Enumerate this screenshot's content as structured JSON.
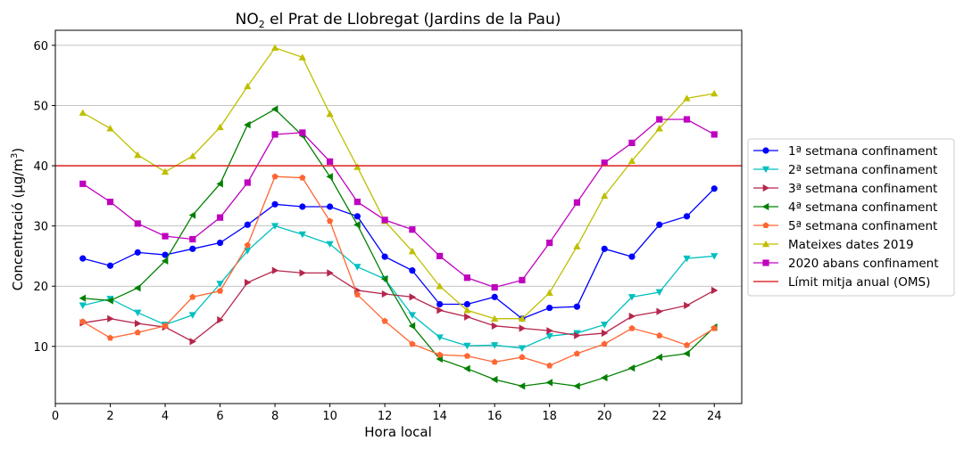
{
  "chart_data": {
    "type": "line",
    "title_main": "NO",
    "title_sub": "2",
    "title_rest": " el Prat de Llobregat (Jardins de la Pau)",
    "xlabel": "Hora local",
    "ylabel_main": "Concentració (µg/m",
    "ylabel_sup": "3",
    "ylabel_end": ")",
    "xlim": [
      0,
      25
    ],
    "ylim": [
      0.5,
      62.5
    ],
    "xticks": [
      0,
      2,
      4,
      6,
      8,
      10,
      12,
      14,
      16,
      18,
      20,
      22,
      24
    ],
    "yticks": [
      10,
      20,
      30,
      40,
      50,
      60
    ],
    "grid": "horizontal",
    "legend_position": "right",
    "x": [
      1,
      2,
      3,
      4,
      5,
      6,
      7,
      8,
      9,
      10,
      11,
      12,
      13,
      14,
      15,
      16,
      17,
      18,
      19,
      20,
      21,
      22,
      23,
      24
    ],
    "series": [
      {
        "name": "1ª setmana confinament",
        "color": "#0000ff",
        "marker": "circle",
        "values": [
          24.6,
          23.4,
          25.6,
          25.2,
          26.2,
          27.2,
          30.2,
          33.6,
          33.2,
          33.2,
          31.6,
          24.9,
          22.6,
          17.0,
          17.0,
          18.2,
          14.6,
          16.4,
          16.6,
          26.2,
          24.9,
          30.2,
          31.6,
          36.2
        ]
      },
      {
        "name": "2ª setmana confinament",
        "color": "#00bfbf",
        "marker": "triangle-down",
        "values": [
          16.8,
          17.9,
          15.6,
          13.6,
          15.2,
          20.4,
          25.9,
          30.0,
          28.6,
          27.0,
          23.2,
          21.2,
          15.2,
          11.5,
          10.1,
          10.2,
          9.7,
          11.7,
          12.2,
          13.6,
          18.2,
          19.0,
          24.6,
          25.0
        ]
      },
      {
        "name": "3ª setmana confinament",
        "color": "#b5264c",
        "marker": "triangle-right",
        "values": [
          13.9,
          14.6,
          13.8,
          13.2,
          10.8,
          14.4,
          20.6,
          22.6,
          22.2,
          22.2,
          19.3,
          18.7,
          18.2,
          16.0,
          14.9,
          13.4,
          13.0,
          12.6,
          11.8,
          12.2,
          15.0,
          15.8,
          16.8,
          19.3
        ]
      },
      {
        "name": "4ª setmana confinament",
        "color": "#008000",
        "marker": "triangle-left",
        "values": [
          18.0,
          17.6,
          19.7,
          24.2,
          31.8,
          37.0,
          46.8,
          49.4,
          45.0,
          38.2,
          30.2,
          21.2,
          13.4,
          7.9,
          6.3,
          4.5,
          3.4,
          4.0,
          3.4,
          4.8,
          6.4,
          8.2,
          8.8,
          13.2
        ]
      },
      {
        "name": "5ª setmana confinament",
        "color": "#ff6633",
        "marker": "pentagon",
        "values": [
          14.1,
          11.4,
          12.3,
          13.4,
          18.2,
          19.2,
          26.8,
          38.2,
          38.0,
          30.8,
          18.6,
          14.2,
          10.4,
          8.6,
          8.4,
          7.4,
          8.2,
          6.8,
          8.8,
          10.4,
          13.0,
          11.8,
          10.2,
          13.0
        ]
      },
      {
        "name": "Mateixes dates 2019",
        "color": "#bfbf00",
        "marker": "triangle-up",
        "values": [
          48.8,
          46.2,
          41.8,
          39.0,
          41.6,
          46.4,
          53.2,
          59.6,
          58.0,
          48.6,
          39.8,
          30.8,
          25.8,
          20.0,
          16.0,
          14.6,
          14.6,
          18.9,
          26.6,
          35.0,
          40.8,
          46.2,
          51.2,
          52.0
        ]
      },
      {
        "name": "2020 abans confinament",
        "color": "#bf00bf",
        "marker": "square",
        "values": [
          37.0,
          34.0,
          30.4,
          28.3,
          27.8,
          31.4,
          37.2,
          45.2,
          45.5,
          40.7,
          34.0,
          31.0,
          29.4,
          25.0,
          21.4,
          19.8,
          21.0,
          27.2,
          33.9,
          40.5,
          43.8,
          47.7,
          47.7,
          45.2
        ]
      },
      {
        "name": "Límit mitja anual (OMS)",
        "color": "#e03030",
        "marker": "none",
        "hline": 40
      }
    ]
  }
}
